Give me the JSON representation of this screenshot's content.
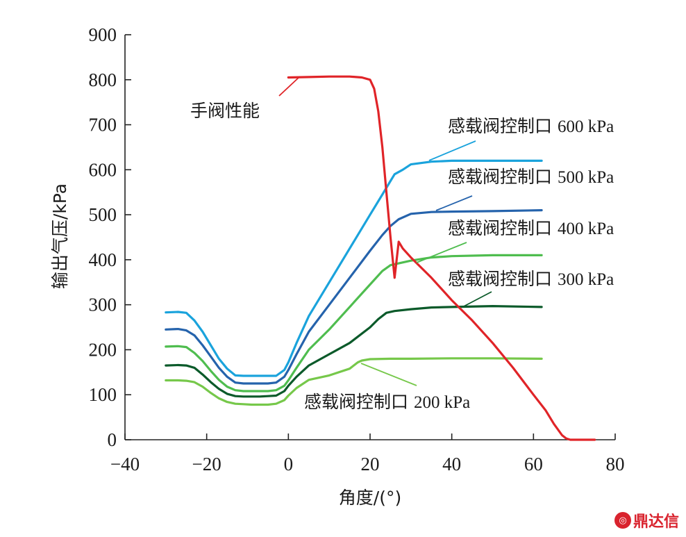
{
  "chart_data": {
    "type": "line",
    "xlabel": "角度/(°)",
    "ylabel": "输出气压/kPa",
    "xlim": [
      -40,
      80
    ],
    "ylim": [
      0,
      900
    ],
    "xticks": [
      "−40",
      "−20",
      "0",
      "20",
      "40",
      "60",
      "80"
    ],
    "yticks": [
      "0",
      "100",
      "200",
      "300",
      "400",
      "500",
      "600",
      "700",
      "800",
      "900"
    ],
    "grid": false,
    "series": [
      {
        "name": "手阀性能",
        "color": "#e02428",
        "x": [
          0,
          5,
          10,
          15,
          18,
          20,
          21,
          22,
          23,
          24,
          25,
          26,
          27,
          28,
          30,
          35,
          40,
          45,
          50,
          55,
          60,
          63,
          65,
          67,
          68,
          69,
          70,
          75
        ],
        "y": [
          805,
          806,
          807,
          807,
          805,
          800,
          780,
          730,
          650,
          550,
          450,
          360,
          440,
          425,
          405,
          360,
          310,
          265,
          215,
          160,
          100,
          65,
          35,
          10,
          3,
          0,
          0,
          0
        ]
      },
      {
        "name": "感载阀控制口 600 kPa",
        "color": "#1aa3dc",
        "x": [
          -30,
          -27,
          -25,
          -23,
          -21,
          -19,
          -17,
          -15,
          -13,
          -11,
          -9,
          -7,
          -5,
          -3,
          -1,
          0,
          2,
          5,
          10,
          15,
          20,
          23,
          25,
          26,
          28,
          30,
          35,
          40,
          50,
          62
        ],
        "y": [
          283,
          284,
          282,
          265,
          240,
          210,
          180,
          158,
          143,
          142,
          142,
          142,
          142,
          142,
          155,
          172,
          215,
          275,
          350,
          425,
          500,
          545,
          575,
          590,
          600,
          612,
          618,
          620,
          620,
          620
        ]
      },
      {
        "name": "感载阀控制口 500 kPa",
        "color": "#2563ac",
        "x": [
          -30,
          -27,
          -25,
          -23,
          -21,
          -19,
          -17,
          -15,
          -13,
          -11,
          -9,
          -7,
          -5,
          -3,
          -1,
          0,
          2,
          5,
          10,
          15,
          20,
          23,
          25,
          27,
          30,
          35,
          40,
          50,
          62
        ],
        "y": [
          245,
          246,
          243,
          232,
          210,
          185,
          160,
          140,
          127,
          125,
          125,
          125,
          125,
          127,
          140,
          155,
          190,
          240,
          300,
          360,
          420,
          455,
          475,
          490,
          502,
          506,
          507,
          508,
          510
        ]
      },
      {
        "name": "感载阀控制口 400 kPa",
        "color": "#4fbd4f",
        "x": [
          -30,
          -27,
          -25,
          -23,
          -21,
          -19,
          -17,
          -15,
          -13,
          -11,
          -9,
          -7,
          -5,
          -3,
          -1,
          0,
          2,
          5,
          10,
          15,
          20,
          23,
          25,
          27,
          30,
          35,
          40,
          50,
          62
        ],
        "y": [
          207,
          208,
          206,
          193,
          175,
          153,
          133,
          118,
          110,
          108,
          108,
          108,
          108,
          110,
          120,
          132,
          160,
          200,
          245,
          295,
          345,
          375,
          388,
          392,
          398,
          405,
          408,
          410,
          410
        ]
      },
      {
        "name": "感载阀控制口 300 kPa",
        "color": "#0b5a2a",
        "x": [
          -30,
          -27,
          -25,
          -23,
          -21,
          -19,
          -17,
          -15,
          -13,
          -11,
          -9,
          -7,
          -5,
          -3,
          -1,
          0,
          2,
          5,
          10,
          15,
          20,
          22,
          24,
          26,
          30,
          35,
          40,
          50,
          62
        ],
        "y": [
          165,
          166,
          165,
          160,
          145,
          128,
          113,
          102,
          97,
          96,
          96,
          96,
          97,
          98,
          108,
          120,
          140,
          165,
          190,
          215,
          250,
          268,
          282,
          286,
          290,
          294,
          295,
          297,
          295
        ]
      },
      {
        "name": "感载阀控制口 200 kPa",
        "color": "#76c84a",
        "x": [
          -30,
          -27,
          -25,
          -23,
          -21,
          -19,
          -17,
          -15,
          -13,
          -11,
          -9,
          -7,
          -5,
          -3,
          -1,
          0,
          2,
          5,
          10,
          15,
          17,
          18,
          20,
          25,
          30,
          40,
          50,
          62
        ],
        "y": [
          132,
          132,
          131,
          128,
          118,
          104,
          92,
          84,
          80,
          79,
          78,
          78,
          78,
          80,
          88,
          98,
          115,
          133,
          143,
          158,
          172,
          176,
          179,
          180,
          180,
          181,
          181,
          180
        ]
      }
    ],
    "annotations": [
      {
        "series": 0,
        "label_cjk": "手阀性能",
        "label_num": ""
      },
      {
        "series": 1,
        "label_cjk": "感载阀控制口",
        "label_num": "600 kPa"
      },
      {
        "series": 2,
        "label_cjk": "感载阀控制口",
        "label_num": "500 kPa"
      },
      {
        "series": 3,
        "label_cjk": "感载阀控制口",
        "label_num": "400 kPa"
      },
      {
        "series": 4,
        "label_cjk": "感载阀控制口",
        "label_num": "300 kPa"
      },
      {
        "series": 5,
        "label_cjk": "感载阀控制口",
        "label_num": "200 kPa"
      }
    ]
  },
  "watermark": {
    "text": "鼎达信",
    "color": "#d9232e"
  }
}
